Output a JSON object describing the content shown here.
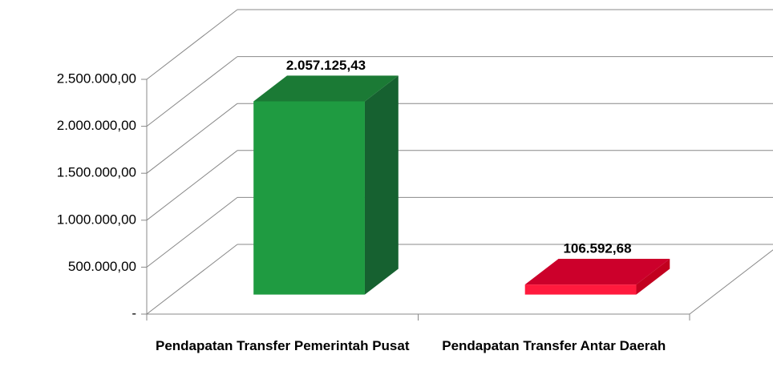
{
  "chart_data": {
    "type": "bar3d",
    "categories": [
      "Pendapatan Transfer Pemerintah Pusat",
      "Pendapatan Transfer Antar Daerah"
    ],
    "series": [
      {
        "values": [
          2057125.43,
          106592.68
        ],
        "value_labels": [
          "2.057.125,43",
          "106.592,68"
        ],
        "colors": [
          {
            "front": "#1f9b41",
            "side": "#166130",
            "top": "#1b7a35"
          },
          {
            "front": "#ff1a3d",
            "side": "#c2001f",
            "top": "#cc002b"
          }
        ]
      }
    ],
    "ylim": [
      0,
      2500000
    ],
    "yticks": [
      {
        "value": 0,
        "label": "-"
      },
      {
        "value": 500000,
        "label": "500.000,00"
      },
      {
        "value": 1000000,
        "label": "1.000.000,00"
      },
      {
        "value": 1500000,
        "label": "1.500.000,00"
      },
      {
        "value": 2000000,
        "label": "2.000.000,00"
      },
      {
        "value": 2500000,
        "label": "2.500.000,00"
      }
    ],
    "grid": true
  }
}
